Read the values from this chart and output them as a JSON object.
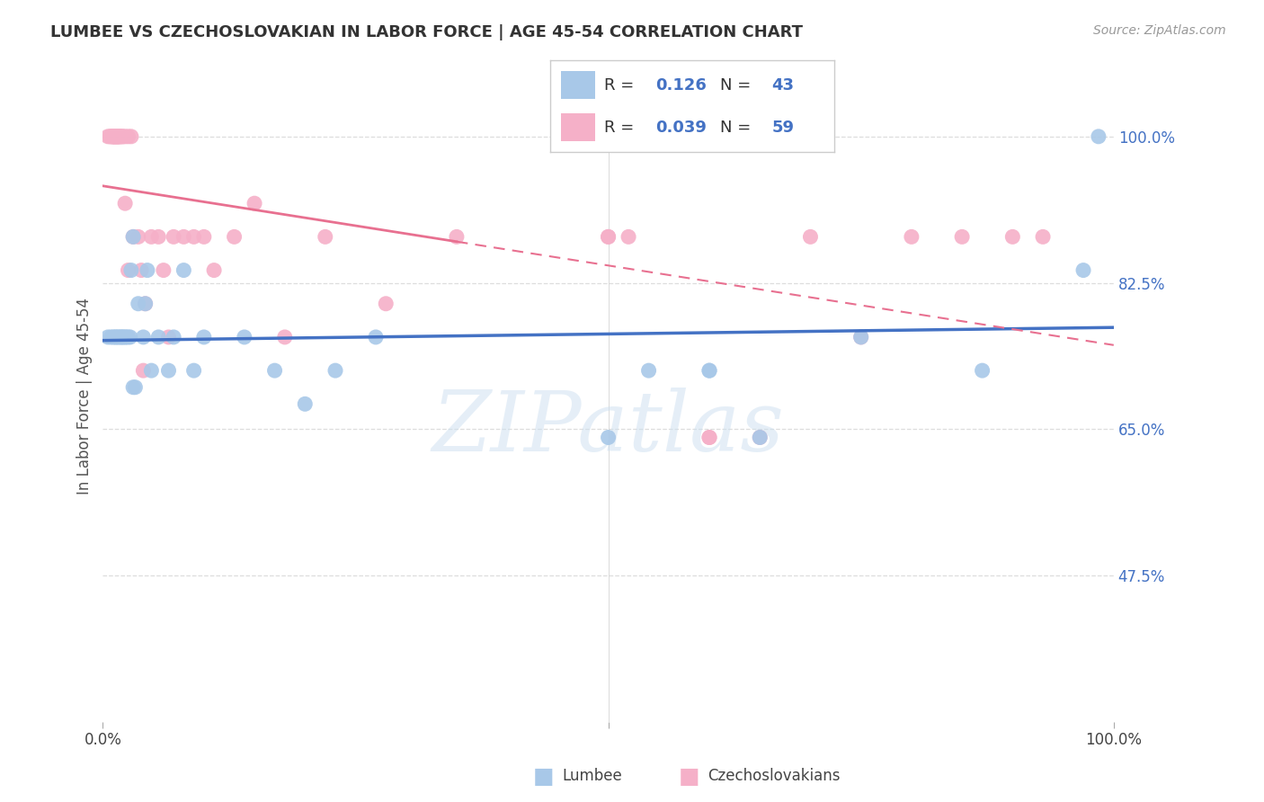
{
  "title": "LUMBEE VS CZECHOSLOVAKIAN IN LABOR FORCE | AGE 45-54 CORRELATION CHART",
  "source": "Source: ZipAtlas.com",
  "ylabel": "In Labor Force | Age 45-54",
  "xlim": [
    0.0,
    1.0
  ],
  "ylim": [
    0.3,
    1.08
  ],
  "y_ticks_right": [
    0.475,
    0.65,
    0.825,
    1.0
  ],
  "y_tick_labels_right": [
    "47.5%",
    "65.0%",
    "82.5%",
    "100.0%"
  ],
  "watermark_text": "ZIPatlas",
  "lumbee_color": "#a8c8e8",
  "czech_color": "#f5b0c8",
  "lumbee_line_color": "#4472c4",
  "czech_line_color": "#e87090",
  "background_color": "#ffffff",
  "grid_color": "#dddddd",
  "legend_r1": "0.126",
  "legend_n1": "43",
  "legend_r2": "0.039",
  "legend_n2": "59",
  "lumbee_points_x": [
    0.005,
    0.008,
    0.01,
    0.012,
    0.013,
    0.015,
    0.016,
    0.018,
    0.019,
    0.02,
    0.022,
    0.023,
    0.025,
    0.027,
    0.028,
    0.03,
    0.032,
    0.035,
    0.04,
    0.042,
    0.044,
    0.048,
    0.055,
    0.065,
    0.07,
    0.08,
    0.09,
    0.1,
    0.14,
    0.17,
    0.2,
    0.23,
    0.27,
    0.5,
    0.54,
    0.6,
    0.65,
    0.75,
    0.87,
    0.97,
    0.985,
    0.6,
    0.03
  ],
  "lumbee_points_y": [
    0.76,
    0.76,
    0.76,
    0.76,
    0.76,
    0.76,
    0.76,
    0.76,
    0.76,
    0.76,
    0.76,
    0.76,
    0.76,
    0.76,
    0.84,
    0.7,
    0.7,
    0.8,
    0.76,
    0.8,
    0.84,
    0.72,
    0.76,
    0.72,
    0.76,
    0.84,
    0.72,
    0.76,
    0.76,
    0.72,
    0.68,
    0.72,
    0.76,
    0.64,
    0.72,
    0.72,
    0.64,
    0.76,
    0.72,
    0.84,
    1.0,
    0.72,
    0.88
  ],
  "czech_points_x": [
    0.005,
    0.007,
    0.008,
    0.009,
    0.01,
    0.01,
    0.011,
    0.011,
    0.012,
    0.012,
    0.013,
    0.013,
    0.014,
    0.014,
    0.015,
    0.015,
    0.016,
    0.016,
    0.017,
    0.018,
    0.019,
    0.02,
    0.022,
    0.022,
    0.025,
    0.028,
    0.03,
    0.035,
    0.038,
    0.042,
    0.048,
    0.055,
    0.06,
    0.065,
    0.07,
    0.08,
    0.09,
    0.1,
    0.11,
    0.13,
    0.15,
    0.18,
    0.22,
    0.28,
    0.35,
    0.5,
    0.52,
    0.6,
    0.65,
    0.7,
    0.75,
    0.8,
    0.85,
    0.9,
    0.93,
    0.025,
    0.04,
    0.5,
    0.6
  ],
  "czech_points_y": [
    1.0,
    1.0,
    1.0,
    1.0,
    1.0,
    1.0,
    1.0,
    1.0,
    1.0,
    1.0,
    1.0,
    1.0,
    1.0,
    1.0,
    1.0,
    1.0,
    1.0,
    1.0,
    1.0,
    1.0,
    1.0,
    1.0,
    0.92,
    1.0,
    1.0,
    1.0,
    0.88,
    0.88,
    0.84,
    0.8,
    0.88,
    0.88,
    0.84,
    0.76,
    0.88,
    0.88,
    0.88,
    0.88,
    0.84,
    0.88,
    0.92,
    0.76,
    0.88,
    0.8,
    0.88,
    0.88,
    0.88,
    0.64,
    0.64,
    0.88,
    0.76,
    0.88,
    0.88,
    0.88,
    0.88,
    0.84,
    0.72,
    0.88,
    0.64
  ]
}
